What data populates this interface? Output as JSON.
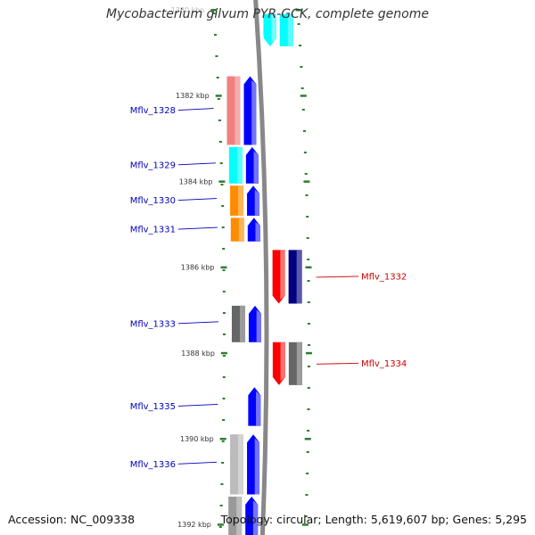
{
  "title": "Mycobacterium gilvum PYR-GCK, complete genome",
  "footer": {
    "accession": "Accession: NC_009338",
    "summary": "Topology: circular; Length: 5,619,607 bp; Genes: 5,295"
  },
  "colors": {
    "backbone": "#888888",
    "tick": "#2e7d32",
    "left_label": "#0000bb",
    "right_label": "#cc0000"
  },
  "scale": {
    "unit": "kbp",
    "ticks": [
      {
        "kbp": 1380,
        "label": "1380 kbp"
      },
      {
        "kbp": 1382,
        "label": "1382 kbp"
      },
      {
        "kbp": 1384,
        "label": "1384 kbp"
      },
      {
        "kbp": 1386,
        "label": "1386 kbp"
      },
      {
        "kbp": 1388,
        "label": "1388 kbp"
      },
      {
        "kbp": 1390,
        "label": "1390 kbp"
      },
      {
        "kbp": 1392,
        "label": "1392 kbp"
      }
    ]
  },
  "genes": [
    {
      "name": "",
      "strand": "reverse",
      "start_kbp": 1380.1,
      "end_kbp": 1380.8,
      "color": "#ff0000",
      "cog_color": "#f4b8b8"
    },
    {
      "name": "",
      "strand": "reverse",
      "start_kbp": 1380.1,
      "end_kbp": 1380.85,
      "color": "#00ffff",
      "cog_color": "#00ffff"
    },
    {
      "name": "Mflv_1328",
      "strand": "forward",
      "start_kbp": 1381.55,
      "end_kbp": 1383.15,
      "color": "#0000ff",
      "cog_color": "#f08080"
    },
    {
      "name": "Mflv_1329",
      "strand": "forward",
      "start_kbp": 1383.2,
      "end_kbp": 1384.05,
      "color": "#0000ff",
      "cog_color": "#00ffff"
    },
    {
      "name": "Mflv_1330",
      "strand": "forward",
      "start_kbp": 1384.1,
      "end_kbp": 1384.8,
      "color": "#0000ff",
      "cog_color": "#ff8c00"
    },
    {
      "name": "Mflv_1331",
      "strand": "forward",
      "start_kbp": 1384.85,
      "end_kbp": 1385.4,
      "color": "#0000ff",
      "cog_color": "#ff8c00"
    },
    {
      "name": "Mflv_1332",
      "strand": "reverse",
      "start_kbp": 1385.6,
      "end_kbp": 1386.85,
      "color": "#ff0000",
      "cog_color": "#000080"
    },
    {
      "name": "Mflv_1333",
      "strand": "forward",
      "start_kbp": 1386.9,
      "end_kbp": 1387.75,
      "color": "#0000ff",
      "cog_color": "#666666"
    },
    {
      "name": "Mflv_1334",
      "strand": "reverse",
      "start_kbp": 1387.75,
      "end_kbp": 1388.75,
      "color": "#ff0000",
      "cog_color": "#666666"
    },
    {
      "name": "Mflv_1335",
      "strand": "forward",
      "start_kbp": 1388.8,
      "end_kbp": 1389.7,
      "color": "#0000ff",
      "cog_color": null
    },
    {
      "name": "Mflv_1336",
      "strand": "forward",
      "start_kbp": 1389.9,
      "end_kbp": 1391.3,
      "color": "#0000ff",
      "cog_color": "#bbbbbb"
    },
    {
      "name": "",
      "strand": "forward",
      "start_kbp": 1391.35,
      "end_kbp": 1392.3,
      "color": "#0000ff",
      "cog_color": "#999999"
    }
  ]
}
